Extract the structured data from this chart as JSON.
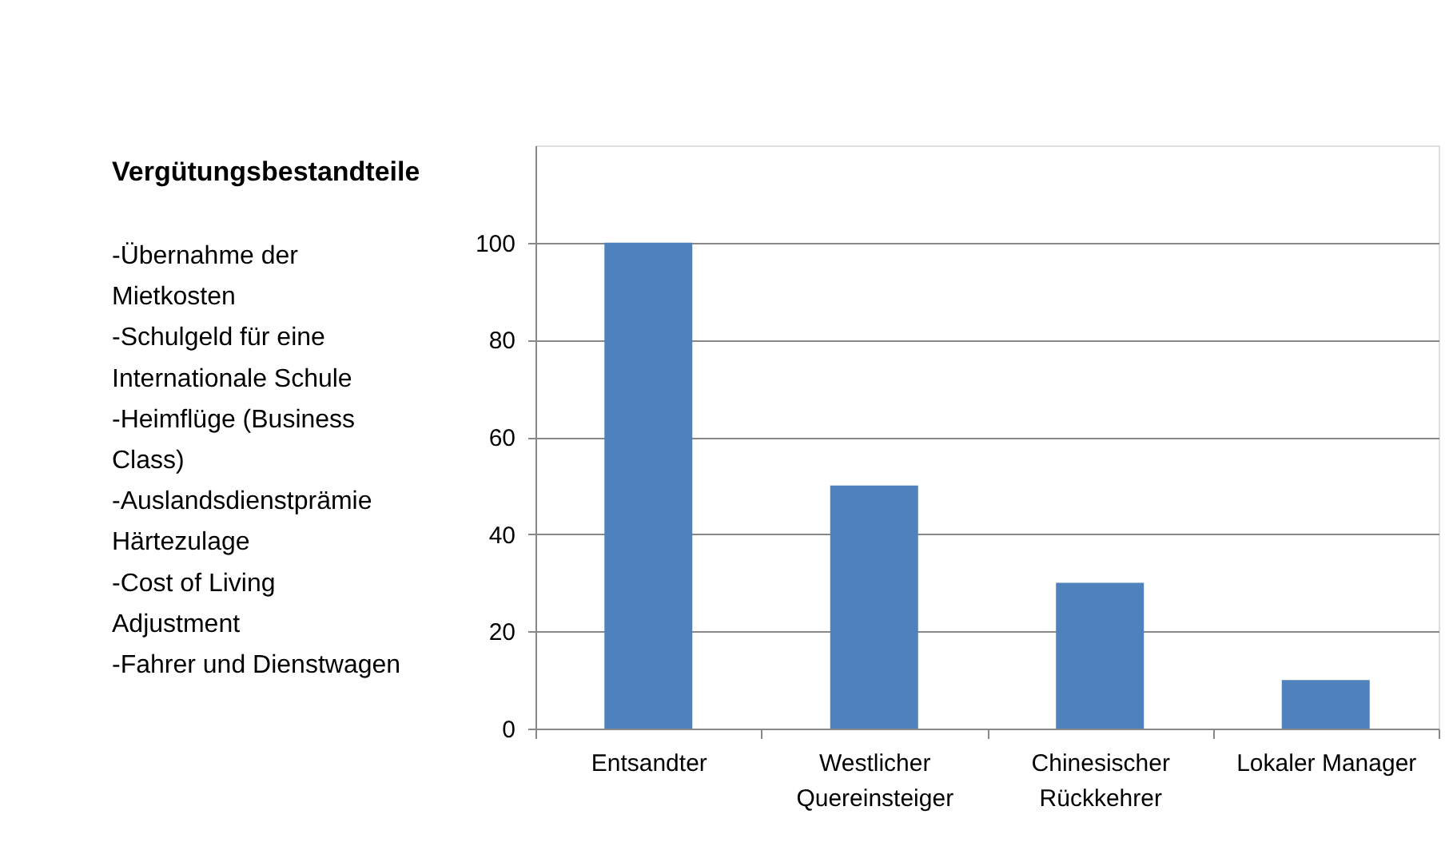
{
  "chart_data": {
    "type": "bar",
    "title": "Vergütungsbestandteile",
    "categories": [
      "Entsandter",
      "Westlicher Quereinsteiger",
      "Chinesischer Rückkehrer",
      "Lokaler Manager"
    ],
    "values": [
      100,
      50,
      30,
      10
    ],
    "color": "#4f81bd",
    "ylim": [
      0,
      120
    ],
    "yticks": [
      0,
      20,
      40,
      60,
      80,
      100
    ],
    "grid": "y",
    "annotations": [
      "-Übernahme der\nMietkosten",
      "-Schulgeld für eine\nInternationale Schule",
      "-Heimflüge (Business\nClass)",
      "-Auslandsdienstprämie\nHärtezulage",
      "-Cost of Living\nAdjustment",
      "-Fahrer und Dienstwagen"
    ]
  }
}
